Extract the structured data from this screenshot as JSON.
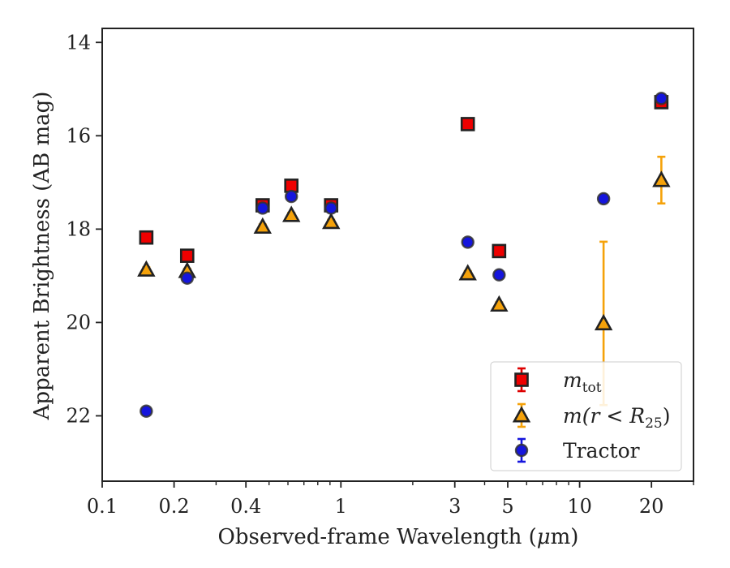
{
  "chart_data": {
    "type": "scatter",
    "title": "",
    "xlabel": "Observed-frame Wavelength (μm)",
    "xlabel_parts": [
      "Observed-frame Wavelength (",
      "μ",
      "m)"
    ],
    "ylabel": "Apparent Brightness (AB mag)",
    "x_scale": "log",
    "y_inverted": true,
    "xlim": [
      0.1,
      30
    ],
    "ylim": [
      23.4,
      13.7
    ],
    "x_ticks": [
      0.1,
      0.2,
      0.4,
      1,
      3,
      5,
      10,
      20
    ],
    "x_tick_labels": [
      "0.1",
      "0.2",
      "0.4",
      "1",
      "3",
      "5",
      "10",
      "20"
    ],
    "y_ticks": [
      14,
      16,
      18,
      20,
      22
    ],
    "y_tick_labels": [
      "14",
      "16",
      "18",
      "20",
      "22"
    ],
    "grid": false,
    "legend_position": "lower-right",
    "series": [
      {
        "name": "m_tot",
        "legend_label": {
          "base": "m",
          "sub": "tot",
          "rest": ""
        },
        "marker": "square",
        "fill": "#ee0000",
        "edge": "#222222",
        "error_color": "#dd0000",
        "points": [
          {
            "x": 0.153,
            "y": 18.18,
            "err": 0.05
          },
          {
            "x": 0.227,
            "y": 18.57,
            "err": 0.05
          },
          {
            "x": 0.47,
            "y": 17.49,
            "err": 0.05
          },
          {
            "x": 0.62,
            "y": 17.07,
            "err": 0.05
          },
          {
            "x": 0.91,
            "y": 17.49,
            "err": 0.05
          },
          {
            "x": 3.4,
            "y": 15.75,
            "err": 0.05
          },
          {
            "x": 4.6,
            "y": 18.47,
            "err": 0.05
          },
          {
            "x": 22,
            "y": 15.28,
            "err": 0.12
          }
        ]
      },
      {
        "name": "m(r < R25)",
        "legend_label": {
          "base": "m",
          "sub": "25",
          "rest": "(r < R"
        },
        "marker": "triangle",
        "fill": "#f5a20a",
        "edge": "#222222",
        "error_color": "#f5a20a",
        "points": [
          {
            "x": 0.153,
            "y": 18.87,
            "err": 0.05
          },
          {
            "x": 0.227,
            "y": 18.9,
            "err": 0.05
          },
          {
            "x": 0.47,
            "y": 17.95,
            "err": 0.05
          },
          {
            "x": 0.62,
            "y": 17.7,
            "err": 0.05
          },
          {
            "x": 0.91,
            "y": 17.85,
            "err": 0.05
          },
          {
            "x": 3.4,
            "y": 18.95,
            "err": 0.05
          },
          {
            "x": 4.6,
            "y": 19.62,
            "err": 0.05
          },
          {
            "x": 12.6,
            "y": 20.02,
            "err": 1.75
          },
          {
            "x": 22,
            "y": 16.95,
            "err": 0.5
          }
        ]
      },
      {
        "name": "Tractor",
        "legend_label": {
          "base": "",
          "sub": "",
          "rest": "Tractor"
        },
        "marker": "circle",
        "fill": "#1515dd",
        "edge": "#333333",
        "error_color": "#1515dd",
        "points": [
          {
            "x": 0.153,
            "y": 21.9,
            "err": 0.05
          },
          {
            "x": 0.227,
            "y": 19.05,
            "err": 0.05
          },
          {
            "x": 0.47,
            "y": 17.55,
            "err": 0.05
          },
          {
            "x": 0.62,
            "y": 17.3,
            "err": 0.05
          },
          {
            "x": 0.91,
            "y": 17.55,
            "err": 0.05
          },
          {
            "x": 3.4,
            "y": 18.28,
            "err": 0.05
          },
          {
            "x": 4.6,
            "y": 18.98,
            "err": 0.05
          },
          {
            "x": 12.6,
            "y": 17.35,
            "err": 0.05
          },
          {
            "x": 22,
            "y": 15.2,
            "err": 0.05
          }
        ]
      }
    ]
  }
}
